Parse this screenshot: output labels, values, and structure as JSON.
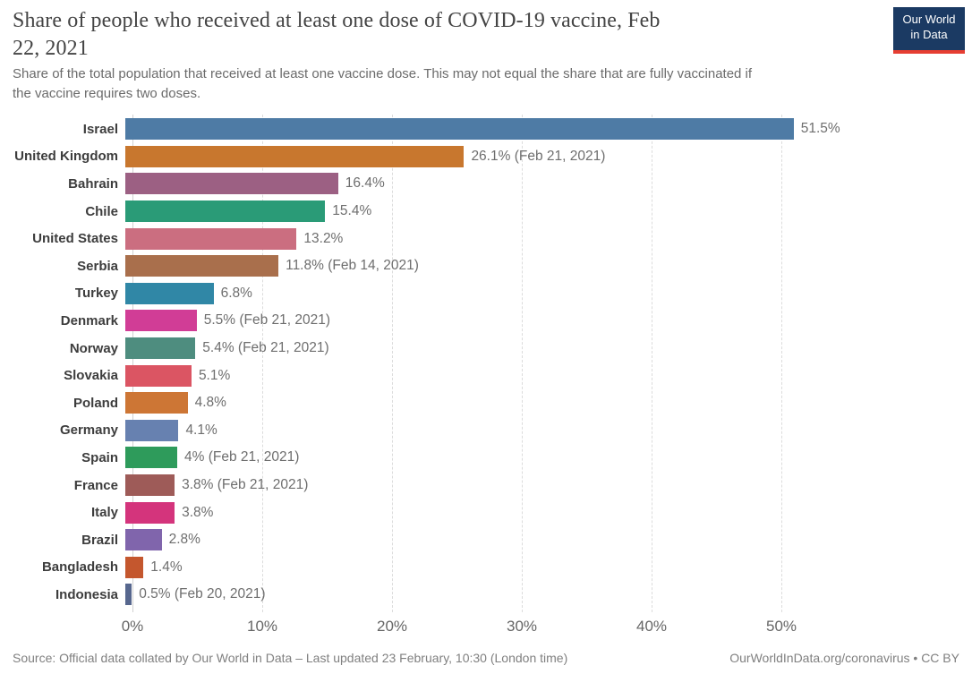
{
  "header": {
    "title_lines": [
      "Share of people who received at least one dose of COVID-19 vaccine, Feb",
      "22, 2021"
    ],
    "subtitle_lines": [
      "Share of the total population that received at least one vaccine dose. This may not equal the share that are fully vaccinated if",
      "the vaccine requires two doses."
    ],
    "logo": {
      "line1": "Our World",
      "line2": "in Data",
      "bg_color": "#1b3a63",
      "accent_color": "#e63e32"
    }
  },
  "chart_data": {
    "type": "bar",
    "orientation": "horizontal",
    "title": "Share of people who received at least one dose of COVID-19 vaccine, Feb 22, 2021",
    "xlabel": "",
    "ylabel": "",
    "xlim": [
      0,
      63
    ],
    "grid": "vertical-dashed",
    "legend_position": "none",
    "categories": [
      "Israel",
      "United Kingdom",
      "Bahrain",
      "Chile",
      "United States",
      "Serbia",
      "Turkey",
      "Denmark",
      "Norway",
      "Slovakia",
      "Poland",
      "Germany",
      "Spain",
      "France",
      "Italy",
      "Brazil",
      "Bangladesh",
      "Indonesia"
    ],
    "values": [
      51.5,
      26.1,
      16.4,
      15.4,
      13.2,
      11.8,
      6.8,
      5.5,
      5.4,
      5.1,
      4.8,
      4.1,
      4.0,
      3.8,
      3.8,
      2.8,
      1.4,
      0.5
    ],
    "value_labels": [
      "51.5%",
      "26.1% (Feb 21, 2021)",
      "16.4%",
      "15.4%",
      "13.2%",
      "11.8% (Feb 14, 2021)",
      "6.8%",
      "5.5% (Feb 21, 2021)",
      "5.4% (Feb 21, 2021)",
      "5.1%",
      "4.8%",
      "4.1%",
      "4% (Feb 21, 2021)",
      "3.8% (Feb 21, 2021)",
      "3.8%",
      "2.8%",
      "1.4%",
      "0.5% (Feb 20, 2021)"
    ],
    "colors": [
      "#4e7ba5",
      "#c8772e",
      "#9c6083",
      "#2a9b77",
      "#cb6e80",
      "#a96f4c",
      "#3087a6",
      "#d13d96",
      "#4e8d7f",
      "#db5563",
      "#cd7635",
      "#6781b0",
      "#2e9b5b",
      "#9e5b58",
      "#d4347c",
      "#8065ac",
      "#c4572e",
      "#57678e"
    ],
    "x_ticks": [
      "0%",
      "10%",
      "20%",
      "30%",
      "40%",
      "50%"
    ],
    "x_tick_values": [
      0,
      10,
      20,
      30,
      40,
      50
    ]
  },
  "footer": {
    "source": "Source: Official data collated by Our World in Data – Last updated 23 February, 10:30 (London time)",
    "link": "OurWorldInData.org/coronavirus • CC BY"
  }
}
